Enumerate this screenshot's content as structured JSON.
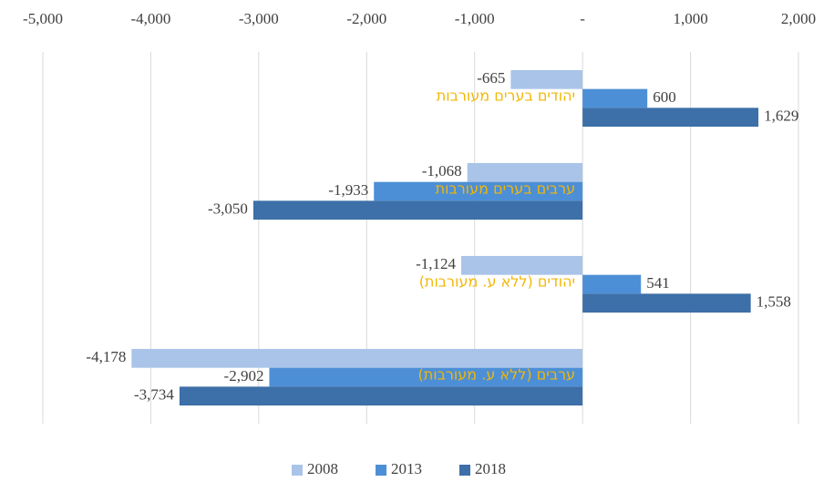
{
  "chart_data": {
    "type": "hbar",
    "categories": [
      "יהודים בערים מעורבות",
      "ערבים בערים מעורבות",
      "יהודים (ללא ע. מעורבות)",
      "ערבים (ללא ע. מעורבות)"
    ],
    "series": [
      {
        "name": "2008",
        "color": "#a9c4e8",
        "values": [
          -665,
          -1068,
          -1124,
          -4178
        ],
        "value_labels": [
          "-665",
          "-1,068",
          "-1,124",
          "-4,178"
        ]
      },
      {
        "name": "2013",
        "color": "#4d8fd6",
        "values": [
          600,
          -1933,
          541,
          -2902
        ],
        "value_labels": [
          "600",
          "-1,933",
          "541",
          "-2,902"
        ]
      },
      {
        "name": "2018",
        "color": "#3d6fa8",
        "values": [
          1629,
          -3050,
          1558,
          -3734
        ],
        "value_labels": [
          "1,629",
          "-3,050",
          "1,558",
          "-3,734"
        ]
      }
    ],
    "xlim": [
      -5000,
      2000
    ],
    "xticks": [
      {
        "value": -5000,
        "label": "-5,000"
      },
      {
        "value": -4000,
        "label": "-4,000"
      },
      {
        "value": -3000,
        "label": "-3,000"
      },
      {
        "value": -2000,
        "label": "-2,000"
      },
      {
        "value": -1000,
        "label": "-1,000"
      },
      {
        "value": 0,
        "label": "-"
      },
      {
        "value": 1000,
        "label": "1,000"
      },
      {
        "value": 2000,
        "label": "2,000"
      }
    ],
    "grid": true,
    "legend": "bottom"
  }
}
